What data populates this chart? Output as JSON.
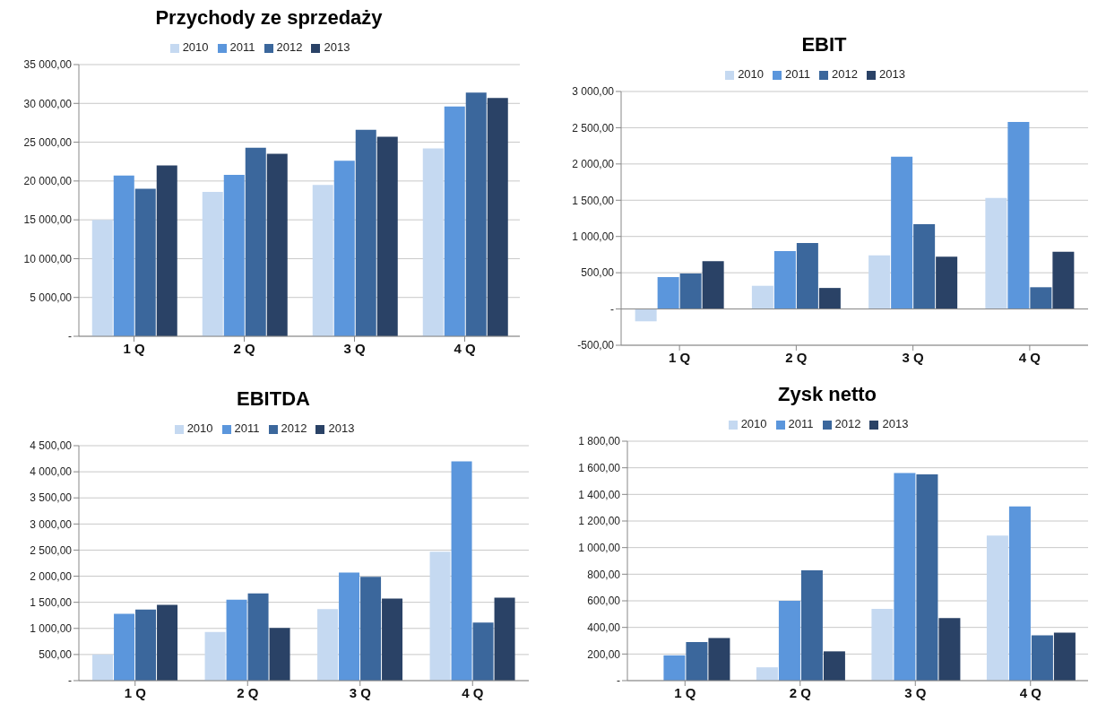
{
  "chart_data": [
    {
      "type": "bar",
      "title": "Przychody ze sprzedaży",
      "categories": [
        "1 Q",
        "2 Q",
        "3 Q",
        "4 Q"
      ],
      "series": [
        {
          "name": "2010",
          "color": "#c5d9f1",
          "values": [
            15000,
            18600,
            19500,
            24200
          ]
        },
        {
          "name": "2011",
          "color": "#5b96dc",
          "values": [
            20700,
            20800,
            22600,
            29600
          ]
        },
        {
          "name": "2012",
          "color": "#3b679c",
          "values": [
            19000,
            24300,
            26600,
            31400
          ]
        },
        {
          "name": "2013",
          "color": "#2a4266",
          "values": [
            22000,
            23500,
            25700,
            30700
          ]
        }
      ],
      "ylim": [
        0,
        35000
      ],
      "yticks": [
        {
          "value": 0,
          "label": "-"
        },
        {
          "value": 5000,
          "label": "5 000,00"
        },
        {
          "value": 10000,
          "label": "10 000,00"
        },
        {
          "value": 15000,
          "label": "15 000,00"
        },
        {
          "value": 20000,
          "label": "20 000,00"
        },
        {
          "value": 25000,
          "label": "25 000,00"
        },
        {
          "value": 30000,
          "label": "30 000,00"
        },
        {
          "value": 35000,
          "label": "35 000,00"
        }
      ],
      "grid": "y",
      "legend": "top"
    },
    {
      "type": "bar",
      "title": "EBIT",
      "categories": [
        "1 Q",
        "2 Q",
        "3 Q",
        "4 Q"
      ],
      "series": [
        {
          "name": "2010",
          "color": "#c5d9f1",
          "values": [
            -170,
            320,
            740,
            1530
          ]
        },
        {
          "name": "2011",
          "color": "#5b96dc",
          "values": [
            440,
            800,
            2100,
            2580
          ]
        },
        {
          "name": "2012",
          "color": "#3b679c",
          "values": [
            490,
            910,
            1170,
            300
          ]
        },
        {
          "name": "2013",
          "color": "#2a4266",
          "values": [
            660,
            290,
            720,
            790
          ]
        }
      ],
      "ylim": [
        -500,
        3000
      ],
      "yticks": [
        {
          "value": -500,
          "label": "-500,00"
        },
        {
          "value": 0,
          "label": "-"
        },
        {
          "value": 500,
          "label": "500,00"
        },
        {
          "value": 1000,
          "label": "1 000,00"
        },
        {
          "value": 1500,
          "label": "1 500,00"
        },
        {
          "value": 2000,
          "label": "2 000,00"
        },
        {
          "value": 2500,
          "label": "2 500,00"
        },
        {
          "value": 3000,
          "label": "3 000,00"
        }
      ],
      "grid": "y",
      "legend": "top"
    },
    {
      "type": "bar",
      "title": "EBITDA",
      "categories": [
        "1 Q",
        "2 Q",
        "3 Q",
        "4 Q"
      ],
      "series": [
        {
          "name": "2010",
          "color": "#c5d9f1",
          "values": [
            500,
            930,
            1370,
            2470
          ]
        },
        {
          "name": "2011",
          "color": "#5b96dc",
          "values": [
            1280,
            1550,
            2070,
            4200
          ]
        },
        {
          "name": "2012",
          "color": "#3b679c",
          "values": [
            1360,
            1670,
            1990,
            1110
          ]
        },
        {
          "name": "2013",
          "color": "#2a4266",
          "values": [
            1450,
            1010,
            1570,
            1590
          ]
        }
      ],
      "ylim": [
        0,
        4500
      ],
      "yticks": [
        {
          "value": 0,
          "label": "-"
        },
        {
          "value": 500,
          "label": "500,00"
        },
        {
          "value": 1000,
          "label": "1 000,00"
        },
        {
          "value": 1500,
          "label": "1 500,00"
        },
        {
          "value": 2000,
          "label": "2 000,00"
        },
        {
          "value": 2500,
          "label": "2 500,00"
        },
        {
          "value": 3000,
          "label": "3 000,00"
        },
        {
          "value": 3500,
          "label": "3 500,00"
        },
        {
          "value": 4000,
          "label": "4 000,00"
        },
        {
          "value": 4500,
          "label": "4 500,00"
        }
      ],
      "grid": "y",
      "legend": "top"
    },
    {
      "type": "bar",
      "title": "Zysk netto",
      "categories": [
        "1 Q",
        "2 Q",
        "3 Q",
        "4 Q"
      ],
      "series": [
        {
          "name": "2010",
          "color": "#c5d9f1",
          "values": [
            null,
            100,
            540,
            1090
          ]
        },
        {
          "name": "2011",
          "color": "#5b96dc",
          "values": [
            190,
            600,
            1560,
            1310
          ]
        },
        {
          "name": "2012",
          "color": "#3b679c",
          "values": [
            290,
            830,
            1550,
            340
          ]
        },
        {
          "name": "2013",
          "color": "#2a4266",
          "values": [
            320,
            220,
            470,
            360
          ]
        }
      ],
      "ylim": [
        0,
        1800
      ],
      "yticks": [
        {
          "value": 0,
          "label": "-"
        },
        {
          "value": 200,
          "label": "200,00"
        },
        {
          "value": 400,
          "label": "400,00"
        },
        {
          "value": 600,
          "label": "600,00"
        },
        {
          "value": 800,
          "label": "800,00"
        },
        {
          "value": 1000,
          "label": "1 000,00"
        },
        {
          "value": 1200,
          "label": "1 200,00"
        },
        {
          "value": 1400,
          "label": "1 400,00"
        },
        {
          "value": 1600,
          "label": "1 600,00"
        },
        {
          "value": 1800,
          "label": "1 800,00"
        }
      ],
      "grid": "y",
      "legend": "top"
    }
  ]
}
